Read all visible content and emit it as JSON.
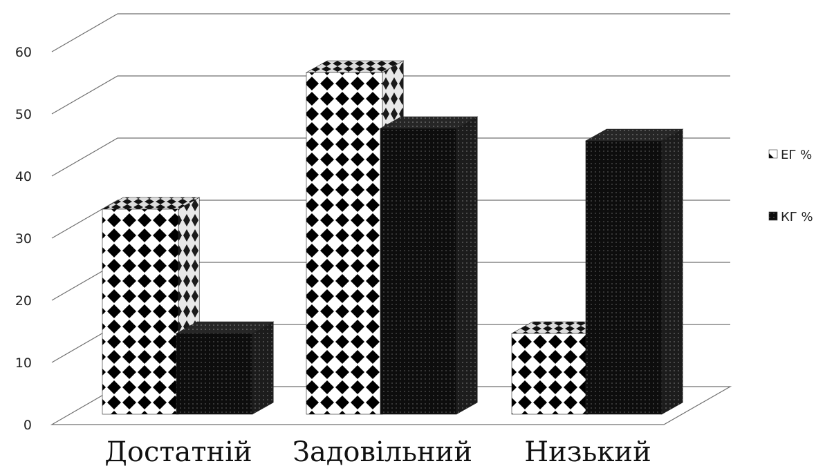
{
  "chart_data": {
    "type": "bar",
    "style": "3d-clustered-column",
    "categories": [
      "Достатній",
      "Задовільний",
      "Низький"
    ],
    "series": [
      {
        "name": "ЕГ %",
        "values": [
          33,
          55,
          13
        ],
        "pattern": "checker-diamond",
        "color": "#000000"
      },
      {
        "name": "КГ %",
        "values": [
          13,
          46,
          44
        ],
        "pattern": "dark-dots",
        "color": "#111111"
      }
    ],
    "yticks": [
      "0",
      "10",
      "20",
      "30",
      "40",
      "50",
      "60"
    ],
    "ylim": [
      0,
      60
    ],
    "grid": true,
    "legend_position": "right",
    "title": "",
    "xlabel": "",
    "ylabel": ""
  }
}
